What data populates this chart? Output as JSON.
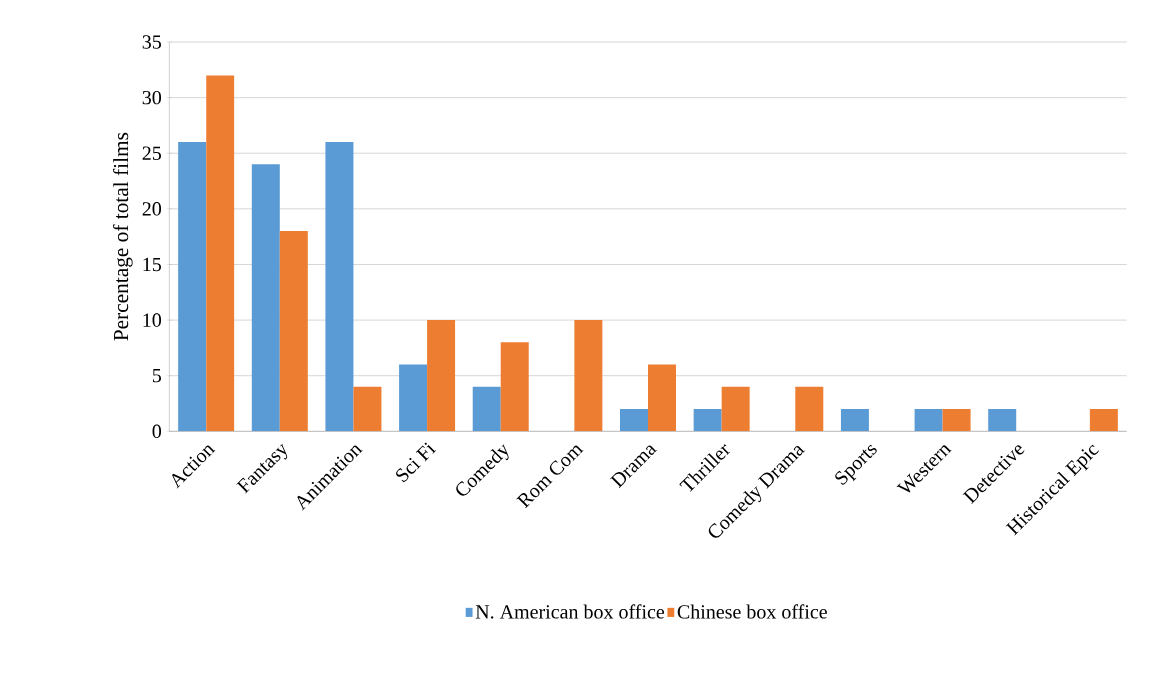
{
  "chart_data": {
    "type": "bar",
    "ylabel": "Percentage of total films",
    "categories": [
      "Action",
      "Fantasy",
      "Animation",
      "Sci Fi",
      "Comedy",
      "Rom Com",
      "Drama",
      "Thriller",
      "Comedy Drama",
      "Sports",
      "Western",
      "Detective",
      "Historical Epic"
    ],
    "series": [
      {
        "name": "N. American box office",
        "color": "#5b9bd5",
        "values": [
          26,
          24,
          26,
          6,
          4,
          0,
          2,
          2,
          0,
          2,
          2,
          2,
          0
        ]
      },
      {
        "name": "Chinese box office",
        "color": "#ed7d31",
        "values": [
          32,
          18,
          4,
          10,
          8,
          10,
          6,
          4,
          4,
          0,
          2,
          0,
          2
        ]
      }
    ],
    "ylim": [
      0,
      35
    ],
    "yticks": [
      0,
      5,
      10,
      15,
      20,
      25,
      30,
      35
    ],
    "grid": "y",
    "legend": "bottom"
  }
}
